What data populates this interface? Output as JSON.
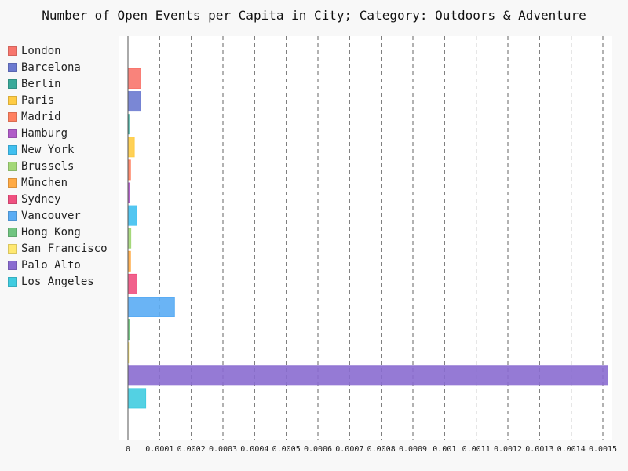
{
  "chart_data": {
    "type": "bar",
    "orientation": "horizontal",
    "title": "Number of Open Events per Capita in City; Category: Outdoors & Adventure",
    "xlabel": "",
    "ylabel": "",
    "xlim": [
      0,
      0.0015
    ],
    "grid": "vertical-dashed",
    "legend_placement": "left",
    "x_ticks": [
      "0",
      "0.0001",
      "0.0002",
      "0.0003",
      "0.0004",
      "0.0005",
      "0.0006",
      "0.0007",
      "0.0008",
      "0.0009",
      "0.001",
      "0.0011",
      "0.0012",
      "0.0013",
      "0.0014",
      "0.0015"
    ],
    "series": [
      {
        "name": "London",
        "value": 4e-05,
        "color": "#f8766d"
      },
      {
        "name": "Barcelona",
        "value": 4e-05,
        "color": "#6c7ad0"
      },
      {
        "name": "Berlin",
        "value": 3e-06,
        "color": "#3aaa9a"
      },
      {
        "name": "Paris",
        "value": 2e-05,
        "color": "#ffcc44"
      },
      {
        "name": "Madrid",
        "value": 8e-06,
        "color": "#ff8060"
      },
      {
        "name": "Hamburg",
        "value": 5e-06,
        "color": "#b05cc8"
      },
      {
        "name": "New York",
        "value": 2.8e-05,
        "color": "#40c0f0"
      },
      {
        "name": "Brussels",
        "value": 9e-06,
        "color": "#a4d878"
      },
      {
        "name": "München",
        "value": 8e-06,
        "color": "#ffaa44"
      },
      {
        "name": "Sydney",
        "value": 2.8e-05,
        "color": "#f05080"
      },
      {
        "name": "Vancouver",
        "value": 0.000147,
        "color": "#5aacf4"
      },
      {
        "name": "Hong Kong",
        "value": 5e-06,
        "color": "#70c480"
      },
      {
        "name": "San Francisco",
        "value": 2e-06,
        "color": "#ffe870"
      },
      {
        "name": "Palo Alto",
        "value": 0.001516,
        "color": "#8a6cd0"
      },
      {
        "name": "Los Angeles",
        "value": 5.6e-05,
        "color": "#40cce0"
      }
    ]
  }
}
